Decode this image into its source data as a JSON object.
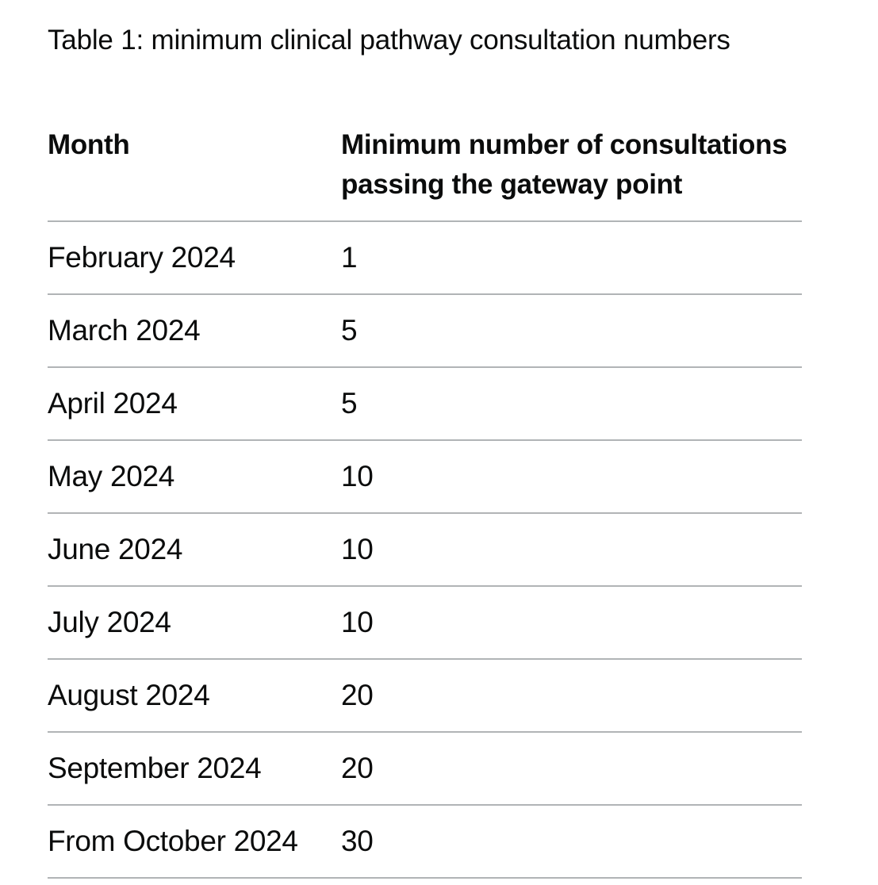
{
  "caption": "Table 1: minimum clinical pathway consultation numbers",
  "table": {
    "headers": [
      "Month",
      "Minimum number of consultations passing the gateway point"
    ],
    "rows": [
      [
        "February 2024",
        "1"
      ],
      [
        "March 2024",
        "5"
      ],
      [
        "April 2024",
        "5"
      ],
      [
        "May 2024",
        "10"
      ],
      [
        "June 2024",
        "10"
      ],
      [
        "July 2024",
        "10"
      ],
      [
        "August 2024",
        "20"
      ],
      [
        "September 2024",
        "20"
      ],
      [
        "From October 2024",
        "30"
      ]
    ]
  },
  "colors": {
    "text": "#0b0c0c",
    "divider": "#b1b4b6",
    "background": "#ffffff"
  }
}
